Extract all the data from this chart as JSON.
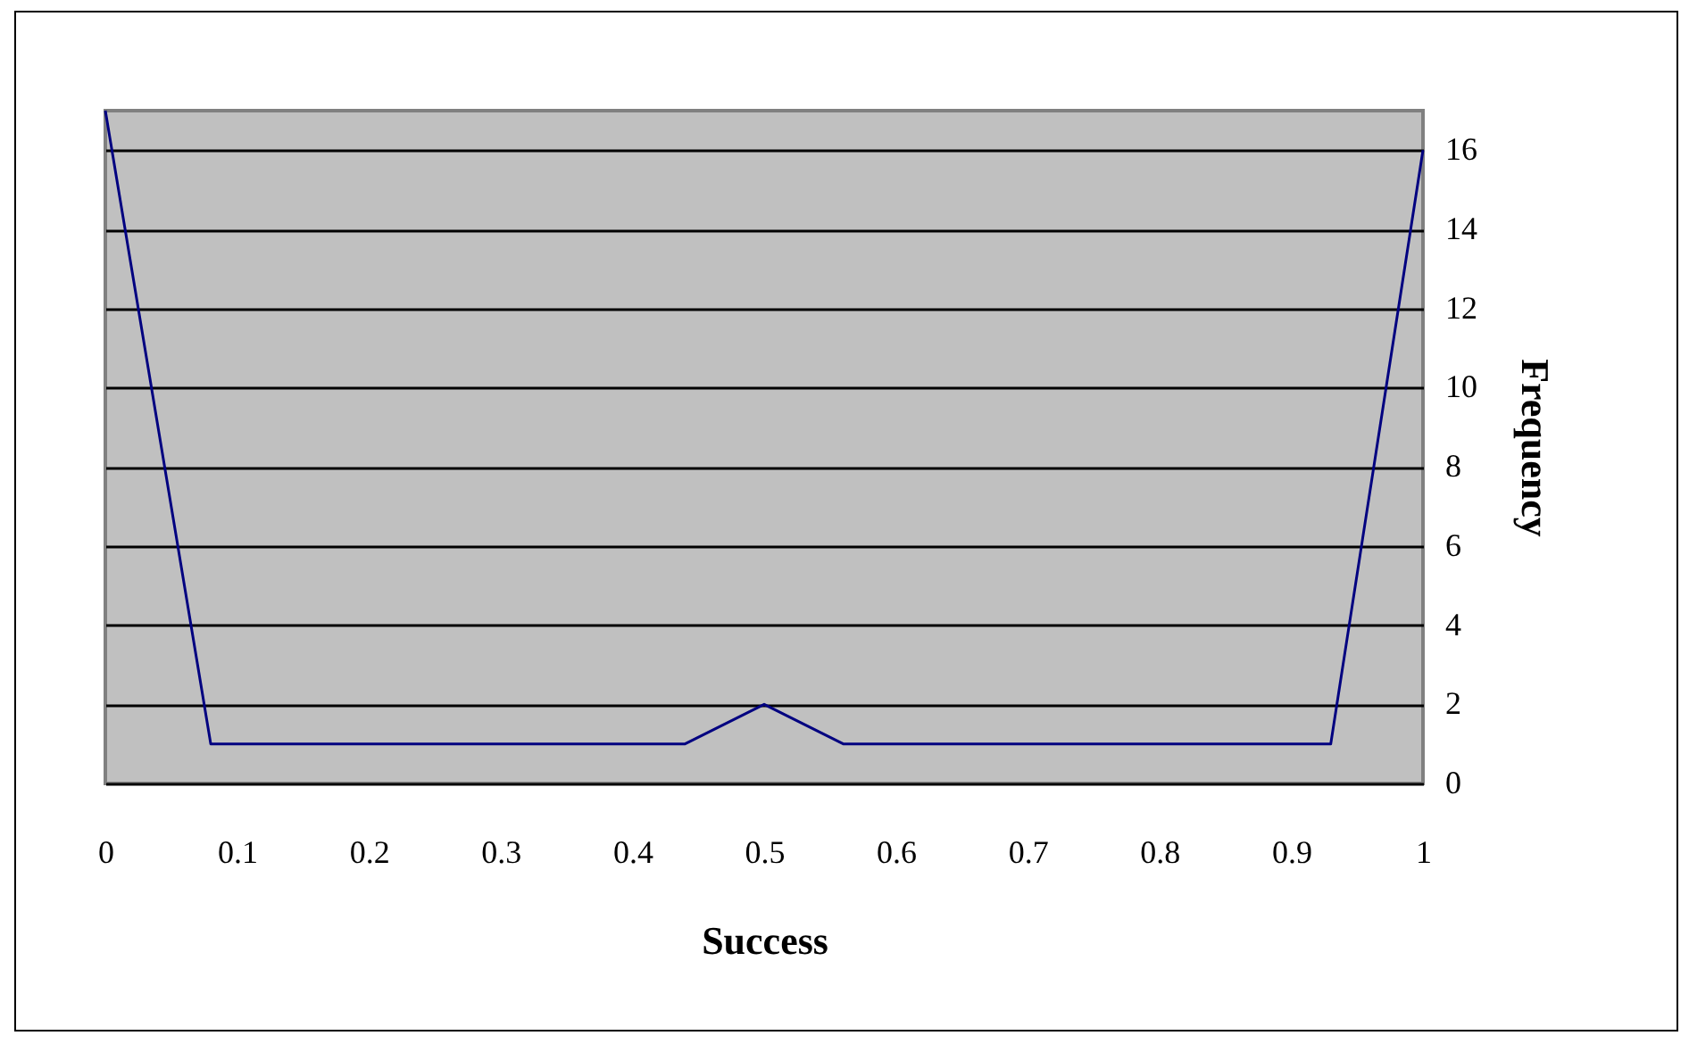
{
  "chart_data": {
    "type": "line",
    "xlabel": "Success",
    "ylabel": "Frequency",
    "x": [
      0,
      0.08,
      0.44,
      0.5,
      0.56,
      0.93,
      1
    ],
    "series": [
      {
        "color": "#000080",
        "values": [
          17,
          1,
          1,
          2,
          1,
          1,
          16
        ]
      }
    ],
    "xlim": [
      0,
      1
    ],
    "xticks": [
      0,
      0.1,
      0.2,
      0.3,
      0.4,
      0.5,
      0.6,
      0.7,
      0.8,
      0.9,
      1
    ],
    "ylim": [
      0,
      17
    ],
    "yticks": [
      0,
      2,
      4,
      6,
      8,
      10,
      12,
      14,
      16
    ],
    "grid": "y",
    "legend": false,
    "marker": "none",
    "line_style": "solid"
  }
}
